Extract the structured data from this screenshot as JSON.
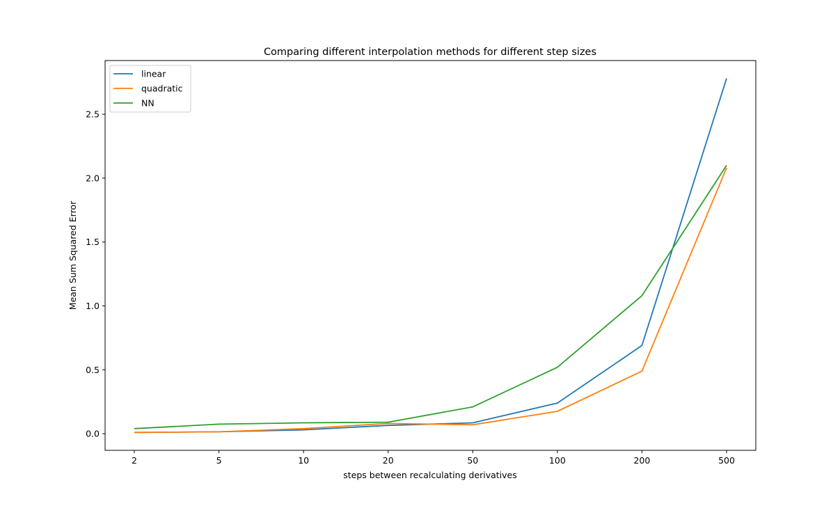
{
  "chart_data": {
    "type": "line",
    "title": "Comparing different interpolation methods for different step sizes",
    "xlabel": "steps between recalculating derivatives",
    "ylabel": "Mean Sum Squared Error",
    "categories": [
      "2",
      "5",
      "10",
      "20",
      "50",
      "100",
      "200",
      "500"
    ],
    "ylim": [
      -0.13,
      2.92
    ],
    "yticks": [
      "0.0",
      "0.5",
      "1.0",
      "1.5",
      "2.0",
      "2.5"
    ],
    "grid": false,
    "legend_position": "top-left",
    "series": [
      {
        "name": "linear",
        "color": "#1f77b4",
        "values": [
          0.01,
          0.015,
          0.03,
          0.065,
          0.085,
          0.24,
          0.69,
          2.78
        ]
      },
      {
        "name": "quadratic",
        "color": "#ff7f0e",
        "values": [
          0.01,
          0.015,
          0.04,
          0.08,
          0.07,
          0.175,
          0.49,
          2.08
        ]
      },
      {
        "name": "NN",
        "color": "#2ca02c",
        "values": [
          0.04,
          0.075,
          0.085,
          0.09,
          0.21,
          0.52,
          1.08,
          2.1
        ]
      }
    ]
  }
}
